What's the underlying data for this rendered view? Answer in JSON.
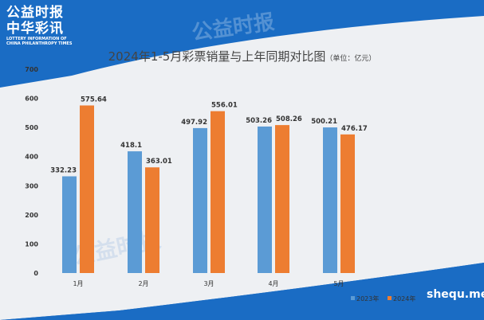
{
  "header": {
    "logo_line1": "公益时报",
    "logo_line2": "中华彩讯",
    "logo_sub1": "LOTTERY INFORMATION OF",
    "logo_sub2": "CHINA PHILANTHROPY TIMES"
  },
  "watermark": "shequ.me",
  "colors": {
    "series_2023": "#5b9bd5",
    "series_2024": "#ed7d31",
    "brand_blue": "#1a6cc4",
    "card": "#eef0f3"
  },
  "chart_data": {
    "type": "bar",
    "title": "2024年1-5月彩票销量与上年同期对比图",
    "unit": "（单位：亿元）",
    "categories": [
      "1月",
      "2月",
      "3月",
      "4月",
      "5月"
    ],
    "series": [
      {
        "name": "2023年",
        "values": [
          332.23,
          418.1,
          497.92,
          503.26,
          500.21
        ],
        "color": "#5b9bd5"
      },
      {
        "name": "2024年",
        "values": [
          575.64,
          363.01,
          556.01,
          508.26,
          476.17
        ],
        "color": "#ed7d31"
      }
    ],
    "ylim": [
      0,
      700
    ],
    "yticks": [
      0,
      100,
      200,
      300,
      400,
      500,
      600,
      700
    ],
    "grid": false,
    "legend": "bottom-right"
  }
}
